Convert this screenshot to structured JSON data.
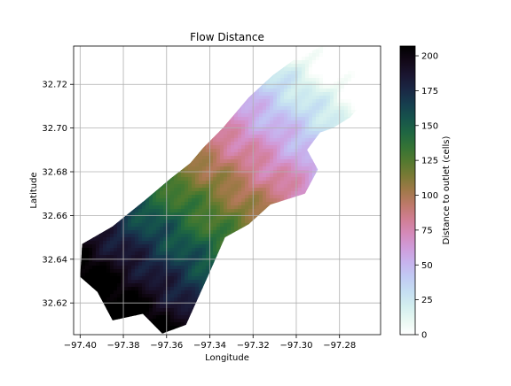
{
  "figure": {
    "title": "Flow Distance"
  },
  "chart_data": {
    "type": "heatmap",
    "title": "Flow Distance",
    "xlabel": "Longitude",
    "ylabel": "Latitude",
    "xlim": [
      -97.403,
      -97.261
    ],
    "ylim": [
      32.6055,
      32.7375
    ],
    "xticks": [
      -97.4,
      -97.38,
      -97.36,
      -97.34,
      -97.32,
      -97.3,
      -97.28
    ],
    "xtick_labels": [
      "−97.40",
      "−97.38",
      "−97.36",
      "−97.34",
      "−97.32",
      "−97.30",
      "−97.28"
    ],
    "yticks": [
      32.62,
      32.64,
      32.66,
      32.68,
      32.7,
      32.72
    ],
    "ytick_labels": [
      "32.62",
      "32.64",
      "32.66",
      "32.68",
      "32.70",
      "32.72"
    ],
    "grid": true,
    "colormap": "cubehelix_r",
    "colorbar": {
      "label": "Distance to outlet (cells)",
      "min": 0,
      "max": 207,
      "ticks": [
        0,
        25,
        50,
        75,
        100,
        125,
        150,
        175,
        200
      ],
      "tick_labels": [
        "0",
        "25",
        "50",
        "75",
        "100",
        "125",
        "150",
        "175",
        "200"
      ]
    },
    "watershed_outline": [
      [
        -97.288,
        32.7375
      ],
      [
        -97.278,
        32.733
      ],
      [
        -97.27,
        32.725
      ],
      [
        -97.262,
        32.72
      ],
      [
        -97.268,
        32.713
      ],
      [
        -97.275,
        32.705
      ],
      [
        -97.283,
        32.7
      ],
      [
        -97.289,
        32.698
      ],
      [
        -97.295,
        32.69
      ],
      [
        -97.29,
        32.681
      ],
      [
        -97.296,
        32.67
      ],
      [
        -97.312,
        32.665
      ],
      [
        -97.322,
        32.656
      ],
      [
        -97.333,
        32.65
      ],
      [
        -97.341,
        32.632
      ],
      [
        -97.351,
        32.61
      ],
      [
        -97.362,
        32.606
      ],
      [
        -97.371,
        32.615
      ],
      [
        -97.385,
        32.612
      ],
      [
        -97.392,
        32.625
      ],
      [
        -97.4,
        32.632
      ],
      [
        -97.399,
        32.647
      ],
      [
        -97.385,
        32.655
      ],
      [
        -97.37,
        32.667
      ],
      [
        -97.358,
        32.677
      ],
      [
        -97.349,
        32.684
      ],
      [
        -97.343,
        32.691
      ],
      [
        -97.334,
        32.7
      ],
      [
        -97.322,
        32.714
      ],
      [
        -97.311,
        32.724
      ],
      [
        -97.3,
        32.732
      ]
    ],
    "flow_distance_field": {
      "outlet": [
        -97.292,
        32.732
      ],
      "upstream_end": [
        -97.385,
        32.628
      ],
      "value_at_outlet": 0,
      "value_at_upstream_end": 207
    }
  }
}
